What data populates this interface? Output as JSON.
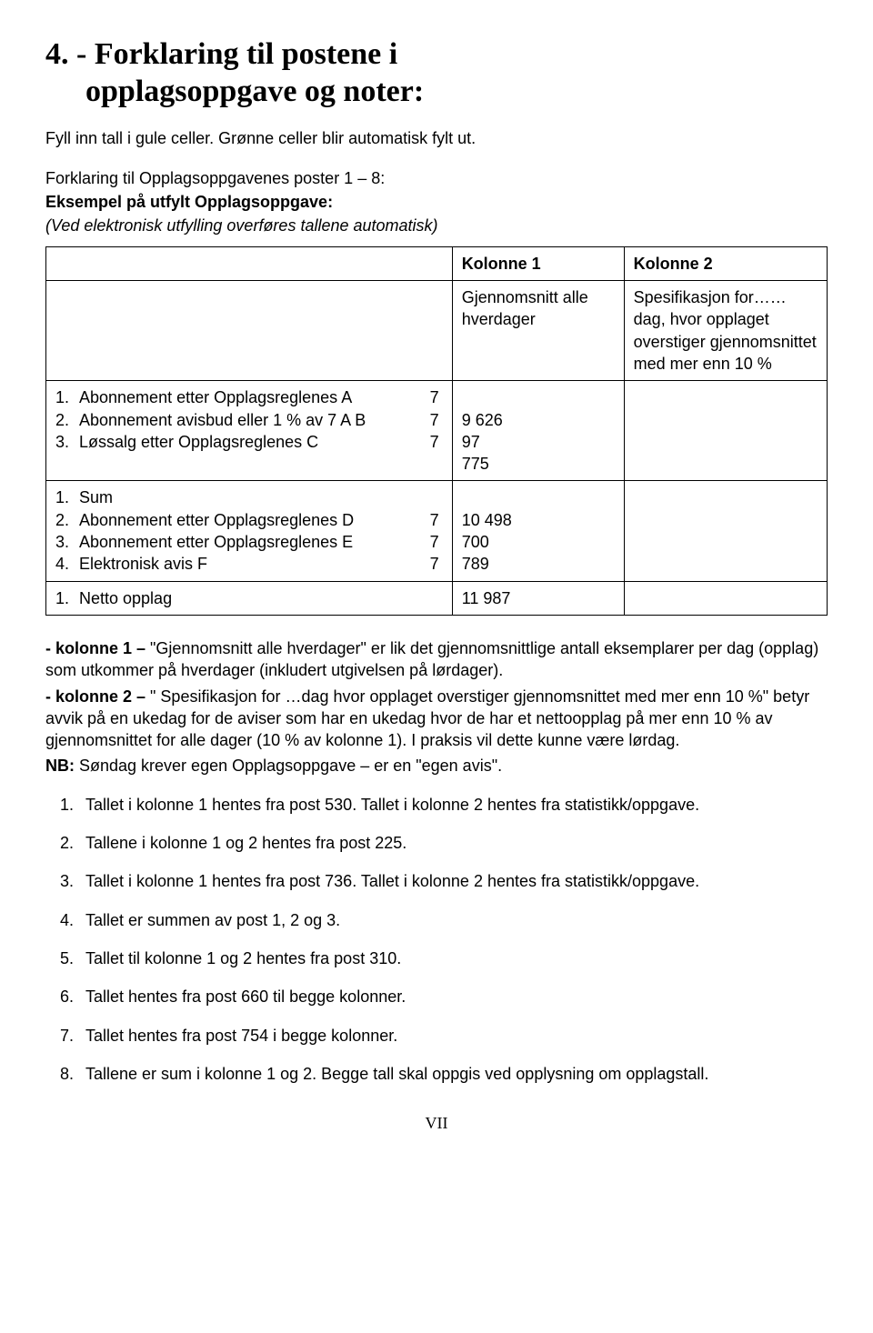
{
  "heading_line1": "4. - Forklaring til postene i",
  "heading_line2": "opplagsoppgave og noter:",
  "intro": "Fyll inn tall i gule celler. Grønne celler blir  automatisk fylt ut.",
  "sub1": "Forklaring til Opplagsoppgavenes poster 1 – 8:",
  "sub2_bold": "Eksempel på utfylt Opplagsoppgave:",
  "sub3_italic": "(Ved elektronisk utfylling overføres tallene automatisk)",
  "col1_label": "Kolonne 1",
  "col2_label": "Kolonne 2",
  "col1_sub": "Gjennomsnitt alle hverdager",
  "col2_sub": "Spesifikasjon for……dag, hvor opplaget overstiger gjennomsnittet med mer enn 10 %",
  "groupA": {
    "r1_num": "1.",
    "r1_text": "Abonnement etter Opplagsreglenes A",
    "r1_seven": "7",
    "r2_num": "2.",
    "r2_text": "Abonnement avisbud eller 1 % av 7 A B",
    "r2_seven": "7",
    "r3_num": "3.",
    "r3_text": "Løssalg etter Opplagsreglenes C",
    "r3_seven": "7",
    "v1": "9 626",
    "v2": "97",
    "v3": "775"
  },
  "groupB": {
    "r1_num": "1.",
    "r1_text": "Sum",
    "r1_seven": "",
    "r2_num": "2.",
    "r2_text": "Abonnement etter Opplagsreglenes D",
    "r2_seven": "7",
    "r3_num": "3.",
    "r3_text": "Abonnement etter Opplagsreglenes E",
    "r3_seven": "7",
    "r4_num": "4.",
    "r4_text": "Elektronisk avis F",
    "r4_seven": "7",
    "v1": "10 498",
    "v2": "700",
    "v3": "789"
  },
  "netto_num": "1.",
  "netto_label": "Netto opplag",
  "netto_val": "11 987",
  "para_k1_lead": "- kolonne 1 –",
  "para_k1_rest": "   \"Gjennomsnitt alle hverdager\" er lik det gjennomsnittlige antall eksemplarer per dag (opplag) som utkommer på hverdager (inkludert utgivelsen på lørdager).",
  "para_k2_lead": "- kolonne 2 –",
  "para_k2_rest": "   \" Spesifikasjon for …dag hvor opplaget overstiger gjennomsnittet med mer enn 10 %\" betyr avvik på en ukedag for de aviser som har en ukedag hvor de har et nettoopplag på mer enn 10 % av gjennomsnittet for alle dager (10 % av kolonne 1). I praksis vil dette kunne være lørdag.",
  "para_nb_lead": "NB:",
  "para_nb_rest": " Søndag krever egen Opplagsoppgave – er en \"egen avis\".",
  "list": [
    "Tallet i kolonne 1 hentes fra post 530. Tallet i kolonne 2 hentes fra statistikk/oppgave.",
    "Tallene i kolonne 1 og 2 hentes fra post 225.",
    "Tallet i kolonne 1 hentes fra post 736. Tallet i kolonne 2 hentes fra statistikk/oppgave.",
    "Tallet er summen av post 1, 2 og 3.",
    "Tallet til kolonne 1 og 2 hentes fra post 310.",
    "Tallet hentes fra post 660 til begge kolonner.",
    "Tallet hentes fra post 754 i begge kolonner.",
    "Tallene er sum i kolonne 1 og 2. Begge tall skal oppgis ved opplysning om opplagstall."
  ],
  "page_num": "VII"
}
